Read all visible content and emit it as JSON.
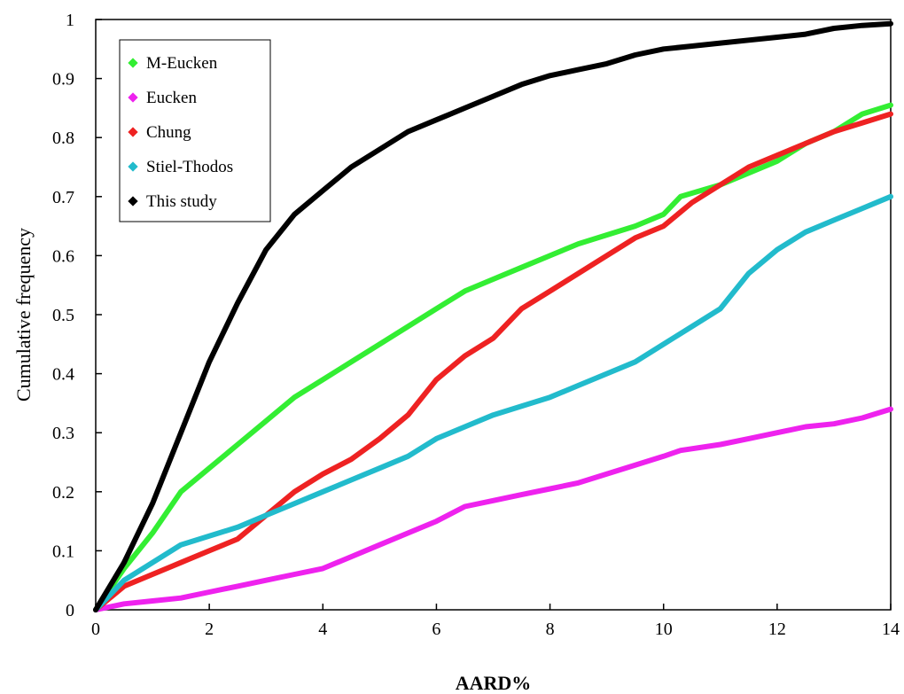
{
  "chart_data": {
    "type": "line",
    "title": "",
    "xlabel": "AARD%",
    "ylabel": "Cumulative frequency",
    "xlim": [
      0,
      14
    ],
    "ylim": [
      0,
      1
    ],
    "x_ticks": [
      "0",
      "2",
      "4",
      "6",
      "8",
      "10",
      "12",
      "14"
    ],
    "y_ticks": [
      "0",
      "0.1",
      "0.2",
      "0.3",
      "0.4",
      "0.5",
      "0.6",
      "0.7",
      "0.8",
      "0.9",
      "1"
    ],
    "grid": false,
    "legend_position": "top-left",
    "series": [
      {
        "name": "M-Eucken",
        "color": "#33ee33",
        "points": [
          [
            0,
            0
          ],
          [
            0.5,
            0.07
          ],
          [
            1,
            0.13
          ],
          [
            1.5,
            0.2
          ],
          [
            2,
            0.24
          ],
          [
            2.5,
            0.28
          ],
          [
            3,
            0.32
          ],
          [
            3.5,
            0.36
          ],
          [
            4,
            0.39
          ],
          [
            4.5,
            0.42
          ],
          [
            5,
            0.45
          ],
          [
            5.5,
            0.48
          ],
          [
            6,
            0.51
          ],
          [
            6.5,
            0.54
          ],
          [
            7,
            0.56
          ],
          [
            7.5,
            0.58
          ],
          [
            8,
            0.6
          ],
          [
            8.5,
            0.62
          ],
          [
            9,
            0.635
          ],
          [
            9.5,
            0.65
          ],
          [
            10,
            0.67
          ],
          [
            10.3,
            0.7
          ],
          [
            11,
            0.72
          ],
          [
            11.5,
            0.74
          ],
          [
            12,
            0.76
          ],
          [
            12.5,
            0.79
          ],
          [
            13,
            0.81
          ],
          [
            13.5,
            0.84
          ],
          [
            14,
            0.855
          ]
        ]
      },
      {
        "name": "Eucken",
        "color": "#ee22ee",
        "points": [
          [
            0,
            0
          ],
          [
            0.5,
            0.01
          ],
          [
            1,
            0.015
          ],
          [
            1.5,
            0.02
          ],
          [
            2,
            0.03
          ],
          [
            2.5,
            0.04
          ],
          [
            3,
            0.05
          ],
          [
            3.5,
            0.06
          ],
          [
            4,
            0.07
          ],
          [
            4.5,
            0.09
          ],
          [
            5,
            0.11
          ],
          [
            5.5,
            0.13
          ],
          [
            6,
            0.15
          ],
          [
            6.5,
            0.175
          ],
          [
            7,
            0.185
          ],
          [
            7.5,
            0.195
          ],
          [
            8,
            0.205
          ],
          [
            8.5,
            0.215
          ],
          [
            9,
            0.23
          ],
          [
            9.5,
            0.245
          ],
          [
            10,
            0.26
          ],
          [
            10.3,
            0.27
          ],
          [
            11,
            0.28
          ],
          [
            11.5,
            0.29
          ],
          [
            12,
            0.3
          ],
          [
            12.5,
            0.31
          ],
          [
            13,
            0.315
          ],
          [
            13.5,
            0.325
          ],
          [
            14,
            0.34
          ]
        ]
      },
      {
        "name": "Chung",
        "color": "#ee2222",
        "points": [
          [
            0,
            0
          ],
          [
            0.5,
            0.04
          ],
          [
            1,
            0.06
          ],
          [
            1.5,
            0.08
          ],
          [
            2,
            0.1
          ],
          [
            2.5,
            0.12
          ],
          [
            3,
            0.16
          ],
          [
            3.5,
            0.2
          ],
          [
            4,
            0.23
          ],
          [
            4.5,
            0.255
          ],
          [
            5,
            0.29
          ],
          [
            5.5,
            0.33
          ],
          [
            6,
            0.39
          ],
          [
            6.5,
            0.43
          ],
          [
            7,
            0.46
          ],
          [
            7.5,
            0.51
          ],
          [
            8,
            0.54
          ],
          [
            8.5,
            0.57
          ],
          [
            9,
            0.6
          ],
          [
            9.5,
            0.63
          ],
          [
            10,
            0.65
          ],
          [
            10.5,
            0.69
          ],
          [
            11,
            0.72
          ],
          [
            11.5,
            0.75
          ],
          [
            12,
            0.77
          ],
          [
            12.5,
            0.79
          ],
          [
            13,
            0.81
          ],
          [
            13.5,
            0.825
          ],
          [
            14,
            0.84
          ]
        ]
      },
      {
        "name": "Stiel-Thodos",
        "color": "#22bbcc",
        "points": [
          [
            0,
            0
          ],
          [
            0.5,
            0.05
          ],
          [
            1,
            0.08
          ],
          [
            1.5,
            0.11
          ],
          [
            2,
            0.125
          ],
          [
            2.5,
            0.14
          ],
          [
            3,
            0.16
          ],
          [
            3.5,
            0.18
          ],
          [
            4,
            0.2
          ],
          [
            4.5,
            0.22
          ],
          [
            5,
            0.24
          ],
          [
            5.5,
            0.26
          ],
          [
            6,
            0.29
          ],
          [
            6.5,
            0.31
          ],
          [
            7,
            0.33
          ],
          [
            7.5,
            0.345
          ],
          [
            8,
            0.36
          ],
          [
            8.5,
            0.38
          ],
          [
            9,
            0.4
          ],
          [
            9.5,
            0.42
          ],
          [
            10,
            0.45
          ],
          [
            10.5,
            0.48
          ],
          [
            11,
            0.51
          ],
          [
            11.5,
            0.57
          ],
          [
            12,
            0.61
          ],
          [
            12.5,
            0.64
          ],
          [
            13,
            0.66
          ],
          [
            13.5,
            0.68
          ],
          [
            14,
            0.7
          ]
        ]
      },
      {
        "name": "This study",
        "color": "#000000",
        "points": [
          [
            0,
            0
          ],
          [
            0.5,
            0.08
          ],
          [
            1,
            0.18
          ],
          [
            1.5,
            0.3
          ],
          [
            2,
            0.42
          ],
          [
            2.5,
            0.52
          ],
          [
            3,
            0.61
          ],
          [
            3.5,
            0.67
          ],
          [
            4,
            0.71
          ],
          [
            4.5,
            0.75
          ],
          [
            5,
            0.78
          ],
          [
            5.5,
            0.81
          ],
          [
            6,
            0.83
          ],
          [
            6.5,
            0.85
          ],
          [
            7,
            0.87
          ],
          [
            7.5,
            0.89
          ],
          [
            8,
            0.905
          ],
          [
            8.5,
            0.915
          ],
          [
            9,
            0.925
          ],
          [
            9.5,
            0.94
          ],
          [
            10,
            0.95
          ],
          [
            10.5,
            0.955
          ],
          [
            11,
            0.96
          ],
          [
            11.5,
            0.965
          ],
          [
            12,
            0.97
          ],
          [
            12.5,
            0.975
          ],
          [
            13,
            0.985
          ],
          [
            13.5,
            0.99
          ],
          [
            14,
            0.993
          ]
        ]
      }
    ]
  }
}
